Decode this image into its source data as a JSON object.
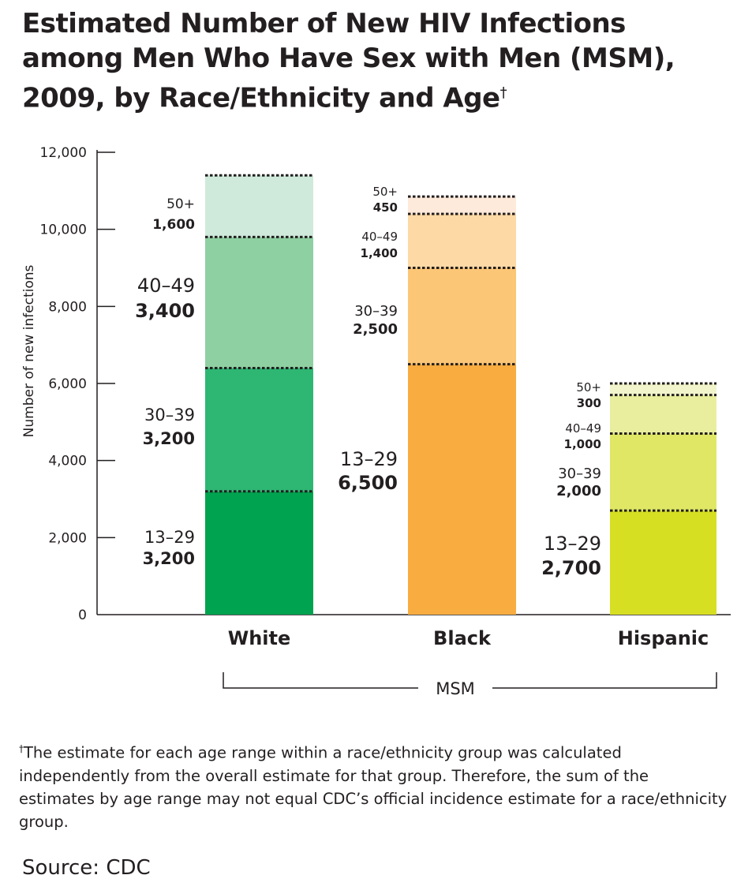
{
  "chart_data": {
    "type": "bar",
    "stacked": true,
    "title": "Estimated Number of New HIV Infections among Men Who Have Sex with Men (MSM), 2009, by Race/Ethnicity and Age",
    "title_mark": "†",
    "ylabel": "Number of new infections",
    "ylim": [
      0,
      12000
    ],
    "yticks": [
      "0",
      "2,000",
      "4,000",
      "6,000",
      "8,000",
      "10,000",
      "12,000"
    ],
    "ytick_values": [
      0,
      2000,
      4000,
      6000,
      8000,
      10000,
      12000
    ],
    "group_label": "MSM",
    "categories": [
      "White",
      "Black",
      "Hispanic"
    ],
    "series": [
      {
        "name": "13–29",
        "values": [
          3200,
          6500,
          2700
        ],
        "value_labels": [
          "3,200",
          "6,500",
          "2,700"
        ]
      },
      {
        "name": "30–39",
        "values": [
          3200,
          2500,
          2000
        ],
        "value_labels": [
          "3,200",
          "2,500",
          "2,000"
        ]
      },
      {
        "name": "40–49",
        "values": [
          3400,
          1400,
          1000
        ],
        "value_labels": [
          "3,400",
          "1,400",
          "1,000"
        ]
      },
      {
        "name": "50+",
        "values": [
          1600,
          450,
          300
        ],
        "value_labels": [
          "1,600",
          "450",
          "300"
        ]
      }
    ],
    "colors": [
      [
        "#00a34f",
        "#2eb673",
        "#8fd0a2",
        "#cfeadb"
      ],
      [
        "#f9ad40",
        "#fcc677",
        "#fdd9a6",
        "#feeada"
      ],
      [
        "#d6df22",
        "#dfe765",
        "#e8ee9e",
        "#f2f5cc"
      ]
    ]
  },
  "footnote": {
    "mark": "†",
    "text": "The estimate for each age range within a race/ethnicity group was calculated independently from the overall estimate for that group. Therefore, the sum of the estimates by age range may not equal CDC’s official incidence estimate for a race/ethnicity group."
  },
  "source": "Source: CDC"
}
